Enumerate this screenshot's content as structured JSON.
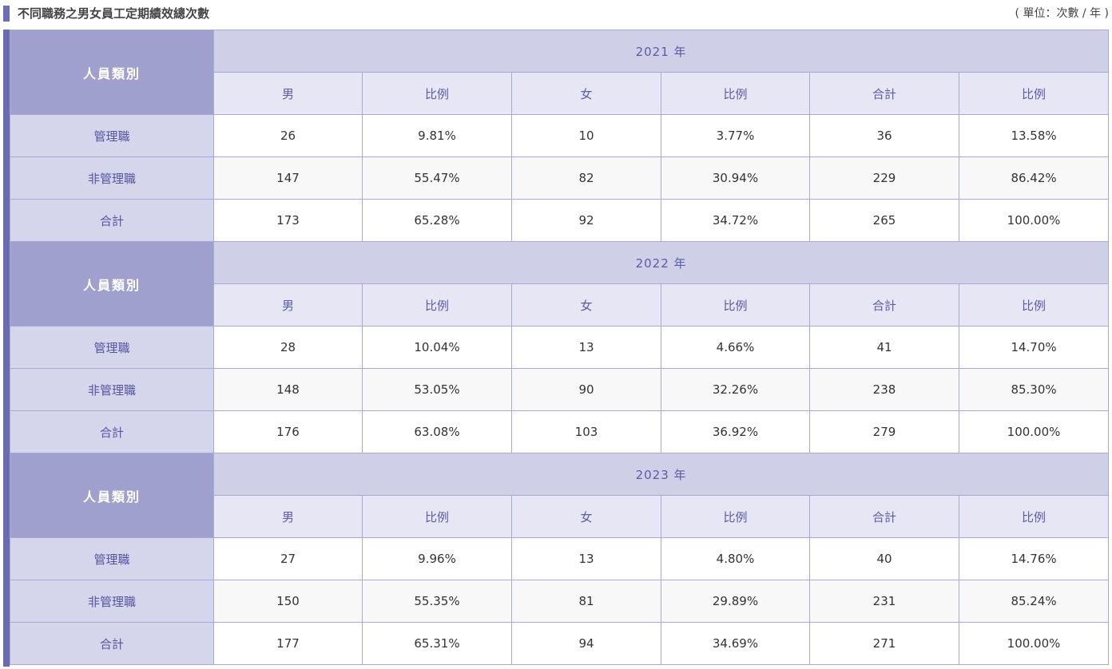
{
  "title": "不同職務之男女員工定期績效總次數",
  "unit": "( 單位：次數 / 年 )",
  "category_header": "人員類別",
  "sub_headers": [
    "男",
    "比例",
    "女",
    "比例",
    "合計",
    "比例"
  ],
  "sections": [
    {
      "year": "2021 年",
      "rows": [
        {
          "label": "管理職",
          "values": [
            "26",
            "9.81%",
            "10",
            "3.77%",
            "36",
            "13.58%"
          ]
        },
        {
          "label": "非管理職",
          "values": [
            "147",
            "55.47%",
            "82",
            "30.94%",
            "229",
            "86.42%"
          ]
        },
        {
          "label": "合計",
          "values": [
            "173",
            "65.28%",
            "92",
            "34.72%",
            "265",
            "100.00%"
          ]
        }
      ]
    },
    {
      "year": "2022 年",
      "rows": [
        {
          "label": "管理職",
          "values": [
            "28",
            "10.04%",
            "13",
            "4.66%",
            "41",
            "14.70%"
          ]
        },
        {
          "label": "非管理職",
          "values": [
            "148",
            "53.05%",
            "90",
            "32.26%",
            "238",
            "85.30%"
          ]
        },
        {
          "label": "合計",
          "values": [
            "176",
            "63.08%",
            "103",
            "36.92%",
            "279",
            "100.00%"
          ]
        }
      ]
    },
    {
      "year": "2023 年",
      "rows": [
        {
          "label": "管理職",
          "values": [
            "27",
            "9.96%",
            "13",
            "4.80%",
            "40",
            "14.76%"
          ]
        },
        {
          "label": "非管理職",
          "values": [
            "150",
            "55.35%",
            "81",
            "29.89%",
            "231",
            "85.24%"
          ]
        },
        {
          "label": "合計",
          "values": [
            "177",
            "65.31%",
            "94",
            "34.69%",
            "271",
            "100.00%"
          ]
        }
      ]
    }
  ]
}
